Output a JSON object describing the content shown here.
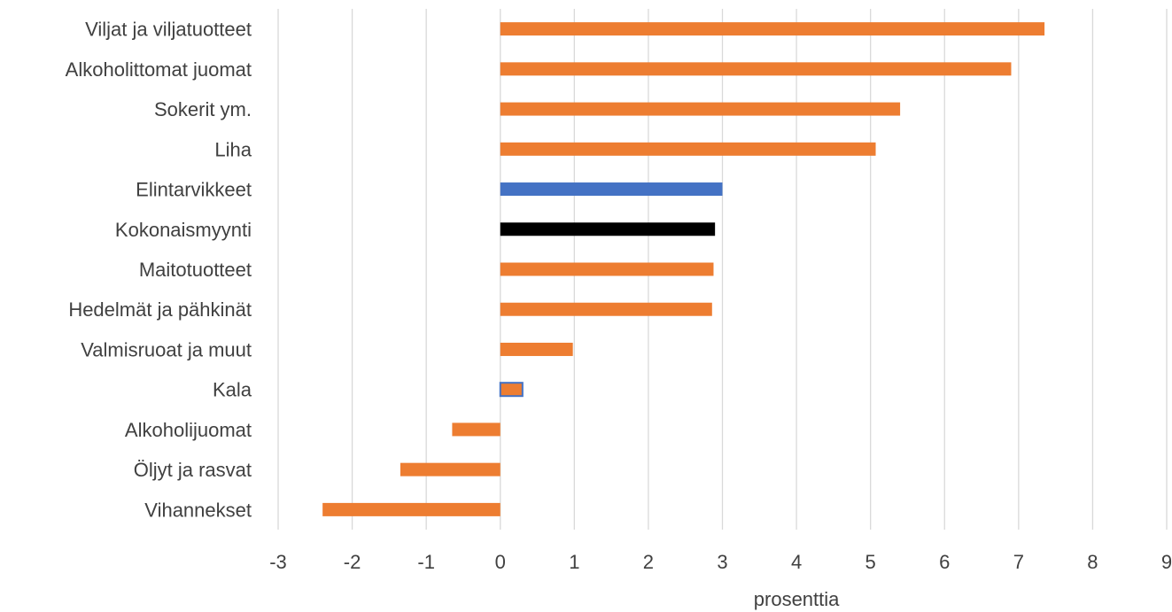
{
  "chart_data": {
    "type": "bar",
    "orientation": "horizontal",
    "title": "",
    "xlabel": "prosenttia",
    "ylabel": "",
    "xlim": [
      -3,
      9
    ],
    "xticks": [
      "-3",
      "-2",
      "-1",
      "0",
      "1",
      "2",
      "3",
      "4",
      "5",
      "6",
      "7",
      "8",
      "9"
    ],
    "grid": true,
    "legend": "none",
    "categories": [
      "Viljat ja viljatuotteet",
      "Alkoholittomat juomat",
      "Sokerit ym.",
      "Liha",
      "Elintarvikkeet",
      "Kokonaismyynti",
      "Maitotuotteet",
      "Hedelmät ja pähkinät",
      "Valmisruoat ja muut",
      "Kala",
      "Alkoholijuomat",
      "Öljyt ja rasvat",
      "Vihannekset"
    ],
    "values": [
      7.35,
      6.9,
      5.4,
      5.07,
      3.0,
      2.9,
      2.88,
      2.86,
      0.98,
      0.3,
      -0.65,
      -1.35,
      -2.4
    ],
    "bar_colors": [
      "#ed7d31",
      "#ed7d31",
      "#ed7d31",
      "#ed7d31",
      "#4472c4",
      "#000000",
      "#ed7d31",
      "#ed7d31",
      "#ed7d31",
      "#ed7d31",
      "#ed7d31",
      "#ed7d31",
      "#ed7d31"
    ],
    "bar_outline": [
      null,
      null,
      null,
      null,
      null,
      null,
      null,
      null,
      null,
      "#4472c4",
      null,
      null,
      null
    ]
  }
}
